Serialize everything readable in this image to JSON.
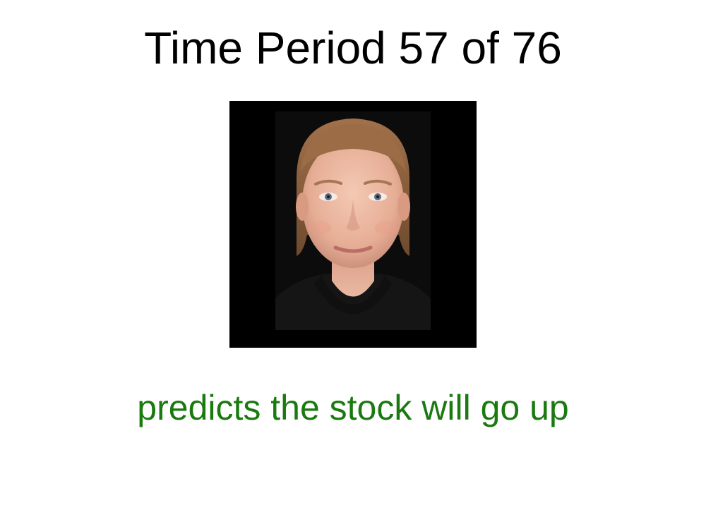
{
  "slide": {
    "title": "Time Period 57 of 76",
    "prediction": "predicts the stock will go up"
  },
  "portrait": {
    "subject": "face-portrait"
  },
  "colors": {
    "background": "#ffffff",
    "title_text": "#000000",
    "prediction_text": "#1a7a10",
    "portrait_background": "#000000"
  }
}
